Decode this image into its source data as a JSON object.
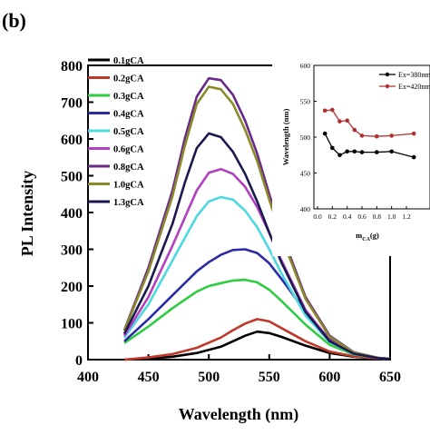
{
  "panel_label": "(b)",
  "chart_data": [
    {
      "type": "line",
      "xlabel": "Wavelength (nm)",
      "ylabel": "PL Intensity",
      "xlim": [
        400,
        650
      ],
      "ylim": [
        0,
        800
      ],
      "xticks": [
        400,
        450,
        500,
        550,
        600,
        650
      ],
      "yticks": [
        0,
        100,
        200,
        300,
        400,
        500,
        600,
        700,
        800
      ],
      "grid": false,
      "legend_position": "top-left",
      "series": [
        {
          "name": "0.1gCA",
          "color": "#000000",
          "x": [
            430,
            450,
            470,
            490,
            510,
            520,
            530,
            540,
            550,
            560,
            580,
            600,
            620,
            640,
            650
          ],
          "y": [
            0,
            3,
            8,
            18,
            35,
            50,
            65,
            76,
            72,
            62,
            38,
            18,
            8,
            3,
            2
          ]
        },
        {
          "name": "0.2gCA",
          "color": "#c0392b",
          "x": [
            430,
            450,
            470,
            490,
            510,
            520,
            530,
            540,
            550,
            560,
            580,
            600,
            620,
            640,
            650
          ],
          "y": [
            0,
            6,
            15,
            32,
            60,
            80,
            98,
            110,
            104,
            86,
            50,
            22,
            9,
            3,
            2
          ]
        },
        {
          "name": "0.3gCA",
          "color": "#2ecc40",
          "x": [
            430,
            450,
            470,
            490,
            500,
            510,
            520,
            530,
            540,
            550,
            560,
            580,
            600,
            620,
            640,
            650
          ],
          "y": [
            45,
            90,
            140,
            185,
            200,
            208,
            215,
            217,
            210,
            190,
            160,
            95,
            40,
            14,
            4,
            2
          ]
        },
        {
          "name": "0.4gCA",
          "color": "#2b2ba8",
          "x": [
            430,
            450,
            470,
            490,
            500,
            510,
            520,
            530,
            540,
            550,
            560,
            580,
            600,
            620,
            640,
            650
          ],
          "y": [
            50,
            110,
            175,
            240,
            265,
            285,
            298,
            300,
            290,
            262,
            220,
            130,
            55,
            18,
            5,
            2
          ]
        },
        {
          "name": "0.5gCA",
          "color": "#4ed8e0",
          "x": [
            430,
            450,
            470,
            490,
            500,
            510,
            520,
            530,
            540,
            550,
            560,
            580,
            600,
            620,
            640,
            650
          ],
          "y": [
            60,
            150,
            270,
            390,
            430,
            442,
            435,
            405,
            360,
            300,
            235,
            120,
            48,
            15,
            4,
            2
          ]
        },
        {
          "name": "0.6gCA",
          "color": "#b040c0",
          "x": [
            430,
            450,
            470,
            490,
            500,
            510,
            520,
            530,
            540,
            550,
            560,
            580,
            600,
            620,
            640,
            650
          ],
          "y": [
            65,
            170,
            310,
            460,
            508,
            518,
            505,
            470,
            415,
            345,
            270,
            135,
            52,
            16,
            4,
            2
          ]
        },
        {
          "name": "0.8gCA",
          "color": "#6a2a8a",
          "x": [
            430,
            450,
            470,
            480,
            490,
            500,
            510,
            520,
            530,
            540,
            550,
            560,
            580,
            600,
            620,
            640,
            650
          ],
          "y": [
            80,
            250,
            460,
            600,
            715,
            765,
            760,
            720,
            650,
            560,
            450,
            345,
            170,
            65,
            20,
            5,
            2
          ]
        },
        {
          "name": "1.0gCA",
          "color": "#8a8a2a",
          "x": [
            430,
            450,
            470,
            480,
            490,
            500,
            510,
            520,
            530,
            540,
            550,
            560,
            580,
            600,
            620,
            640,
            650
          ],
          "y": [
            78,
            240,
            445,
            580,
            695,
            742,
            735,
            695,
            625,
            540,
            435,
            335,
            165,
            62,
            19,
            5,
            2
          ]
        },
        {
          "name": "1.3gCA",
          "color": "#1a1a50",
          "x": [
            430,
            450,
            470,
            480,
            490,
            500,
            510,
            520,
            530,
            540,
            550,
            560,
            580,
            600,
            620,
            640,
            650
          ],
          "y": [
            70,
            200,
            370,
            480,
            575,
            615,
            605,
            565,
            505,
            430,
            345,
            265,
            130,
            50,
            16,
            4,
            2
          ]
        }
      ]
    },
    {
      "type": "line",
      "xlabel": "m",
      "xlabel_sub": "CA",
      "xlabel_suffix": "(g)",
      "ylabel": "Wavelength (nm)",
      "xlim": [
        0,
        1.3
      ],
      "ylim": [
        400,
        600
      ],
      "xticks": [
        "0.0",
        "0.2",
        "0.4",
        "0.6",
        "0.8",
        "1.0",
        "1.2"
      ],
      "yticks": [
        400,
        450,
        500,
        550,
        600
      ],
      "legend_position": "top-right",
      "series": [
        {
          "name": "Ex=380nm",
          "color": "#000000",
          "x": [
            0.1,
            0.2,
            0.3,
            0.4,
            0.5,
            0.6,
            0.8,
            1.0,
            1.3
          ],
          "y": [
            505,
            485,
            475,
            480,
            480,
            479,
            479,
            480,
            472
          ]
        },
        {
          "name": "Ex=420nm",
          "color": "#b03030",
          "x": [
            0.1,
            0.2,
            0.3,
            0.4,
            0.5,
            0.6,
            0.8,
            1.0,
            1.3
          ],
          "y": [
            537,
            538,
            522,
            523,
            510,
            502,
            501,
            502,
            505
          ]
        }
      ]
    }
  ]
}
